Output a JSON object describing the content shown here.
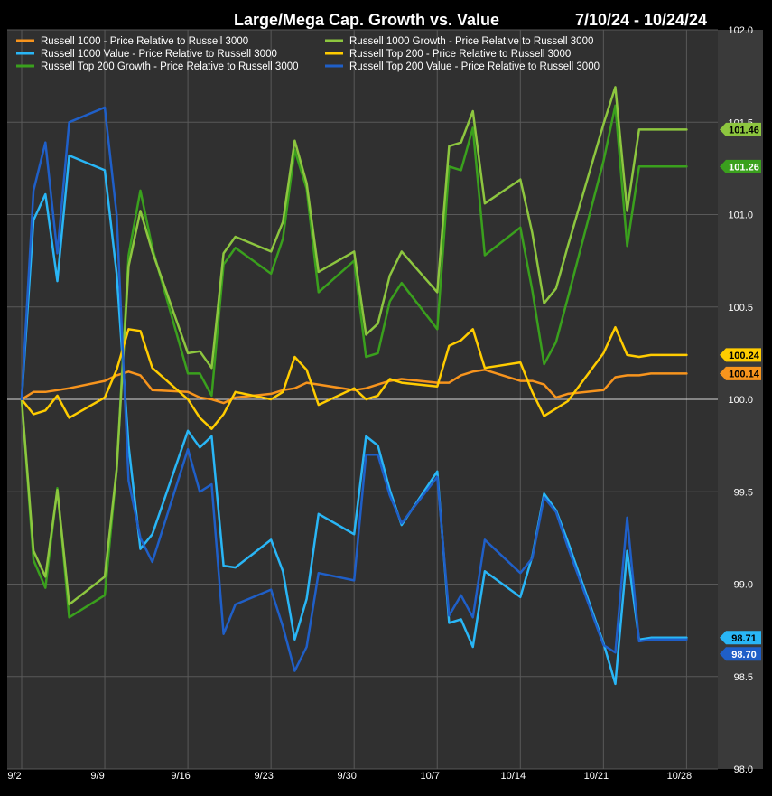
{
  "chart_data": {
    "type": "line",
    "title": "Large/Mega Cap. Growth vs. Value",
    "date_range": "7/10/24 - 10/24/24",
    "xlabel": "",
    "ylabel": "",
    "x_tick_labels": [
      "9/2",
      "9/9",
      "9/16",
      "9/23",
      "9/30",
      "10/7",
      "10/14",
      "10/21",
      "10/28"
    ],
    "y_tick_labels": [
      "102.0",
      "101.5",
      "101.0",
      "100.5",
      "100.0",
      "99.5",
      "99.0",
      "98.5",
      "98.0"
    ],
    "y_ticks": [
      102.0,
      101.5,
      101.0,
      100.5,
      100.0,
      99.5,
      99.0,
      98.5,
      98.0
    ],
    "ylim": [
      98.0,
      102.0
    ],
    "x_start": "2024-09-02",
    "reference_line": 100.0,
    "background": "#303030",
    "grid": true,
    "grid_color": "#595959",
    "legend_position": "top-left",
    "series": [
      {
        "name": "Russell 1000 - Price Relative to Russell 3000",
        "color": "#f7941d",
        "last_value_label": "100.14",
        "values": [
          [
            "2024-09-02",
            100.0
          ],
          [
            "2024-09-03",
            100.04
          ],
          [
            "2024-09-04",
            100.04
          ],
          [
            "2024-09-05",
            100.05
          ],
          [
            "2024-09-06",
            100.06
          ],
          [
            "2024-09-09",
            100.1
          ],
          [
            "2024-09-10",
            100.13
          ],
          [
            "2024-09-11",
            100.15
          ],
          [
            "2024-09-12",
            100.13
          ],
          [
            "2024-09-13",
            100.05
          ],
          [
            "2024-09-16",
            100.04
          ],
          [
            "2024-09-17",
            100.01
          ],
          [
            "2024-09-18",
            100.0
          ],
          [
            "2024-09-19",
            99.98
          ],
          [
            "2024-09-20",
            100.01
          ],
          [
            "2024-09-23",
            100.03
          ],
          [
            "2024-09-24",
            100.05
          ],
          [
            "2024-09-25",
            100.06
          ],
          [
            "2024-09-26",
            100.09
          ],
          [
            "2024-09-27",
            100.08
          ],
          [
            "2024-09-30",
            100.05
          ],
          [
            "2024-10-01",
            100.06
          ],
          [
            "2024-10-02",
            100.08
          ],
          [
            "2024-10-03",
            100.1
          ],
          [
            "2024-10-04",
            100.11
          ],
          [
            "2024-10-07",
            100.09
          ],
          [
            "2024-10-08",
            100.09
          ],
          [
            "2024-10-09",
            100.13
          ],
          [
            "2024-10-10",
            100.15
          ],
          [
            "2024-10-11",
            100.16
          ],
          [
            "2024-10-14",
            100.1
          ],
          [
            "2024-10-15",
            100.1
          ],
          [
            "2024-10-16",
            100.08
          ],
          [
            "2024-10-17",
            100.01
          ],
          [
            "2024-10-18",
            100.03
          ],
          [
            "2024-10-21",
            100.05
          ],
          [
            "2024-10-22",
            100.12
          ],
          [
            "2024-10-23",
            100.13
          ],
          [
            "2024-10-24",
            100.13
          ],
          [
            "2024-10-25",
            100.14
          ],
          [
            "2024-10-28",
            100.14
          ]
        ]
      },
      {
        "name": "Russell 1000 Value - Price Relative to Russell 3000",
        "color": "#29b6f6",
        "last_value_label": "98.71",
        "values": [
          [
            "2024-09-02",
            100.0
          ],
          [
            "2024-09-03",
            100.97
          ],
          [
            "2024-09-04",
            101.11
          ],
          [
            "2024-09-05",
            100.64
          ],
          [
            "2024-09-06",
            101.32
          ],
          [
            "2024-09-09",
            101.24
          ],
          [
            "2024-09-10",
            100.68
          ],
          [
            "2024-09-11",
            99.75
          ],
          [
            "2024-09-12",
            99.19
          ],
          [
            "2024-09-13",
            99.27
          ],
          [
            "2024-09-16",
            99.83
          ],
          [
            "2024-09-17",
            99.74
          ],
          [
            "2024-09-18",
            99.8
          ],
          [
            "2024-09-19",
            99.1
          ],
          [
            "2024-09-20",
            99.09
          ],
          [
            "2024-09-23",
            99.24
          ],
          [
            "2024-09-24",
            99.07
          ],
          [
            "2024-09-25",
            98.7
          ],
          [
            "2024-09-26",
            98.92
          ],
          [
            "2024-09-27",
            99.38
          ],
          [
            "2024-09-30",
            99.27
          ],
          [
            "2024-10-01",
            99.8
          ],
          [
            "2024-10-02",
            99.75
          ],
          [
            "2024-10-03",
            99.51
          ],
          [
            "2024-10-04",
            99.32
          ],
          [
            "2024-10-07",
            99.61
          ],
          [
            "2024-10-08",
            98.79
          ],
          [
            "2024-10-09",
            98.81
          ],
          [
            "2024-10-10",
            98.66
          ],
          [
            "2024-10-11",
            99.07
          ],
          [
            "2024-10-14",
            98.93
          ],
          [
            "2024-10-15",
            99.15
          ],
          [
            "2024-10-16",
            99.49
          ],
          [
            "2024-10-17",
            99.4
          ],
          [
            "2024-10-18",
            99.23
          ],
          [
            "2024-10-21",
            98.68
          ],
          [
            "2024-10-22",
            98.46
          ],
          [
            "2024-10-23",
            99.18
          ],
          [
            "2024-10-24",
            98.7
          ],
          [
            "2024-10-25",
            98.71
          ],
          [
            "2024-10-28",
            98.71
          ]
        ]
      },
      {
        "name": "Russell Top 200 Growth - Price Relative to Russell 3000",
        "color": "#3aa01d",
        "last_value_label": "101.26",
        "values": [
          [
            "2024-09-02",
            100.0
          ],
          [
            "2024-09-03",
            99.13
          ],
          [
            "2024-09-04",
            98.98
          ],
          [
            "2024-09-05",
            99.52
          ],
          [
            "2024-09-06",
            98.82
          ],
          [
            "2024-09-09",
            98.94
          ],
          [
            "2024-09-10",
            99.62
          ],
          [
            "2024-09-11",
            100.78
          ],
          [
            "2024-09-12",
            101.13
          ],
          [
            "2024-09-13",
            100.82
          ],
          [
            "2024-09-16",
            100.14
          ],
          [
            "2024-09-17",
            100.14
          ],
          [
            "2024-09-18",
            100.02
          ],
          [
            "2024-09-19",
            100.73
          ],
          [
            "2024-09-20",
            100.82
          ],
          [
            "2024-09-23",
            100.68
          ],
          [
            "2024-09-24",
            100.87
          ],
          [
            "2024-09-25",
            101.35
          ],
          [
            "2024-09-26",
            101.14
          ],
          [
            "2024-09-27",
            100.58
          ],
          [
            "2024-09-30",
            100.75
          ],
          [
            "2024-10-01",
            100.23
          ],
          [
            "2024-10-02",
            100.25
          ],
          [
            "2024-10-03",
            100.53
          ],
          [
            "2024-10-04",
            100.63
          ],
          [
            "2024-10-07",
            100.38
          ],
          [
            "2024-10-08",
            101.26
          ],
          [
            "2024-10-09",
            101.24
          ],
          [
            "2024-10-10",
            101.47
          ],
          [
            "2024-10-11",
            100.78
          ],
          [
            "2024-10-14",
            100.93
          ],
          [
            "2024-10-15",
            100.59
          ],
          [
            "2024-10-16",
            100.19
          ],
          [
            "2024-10-17",
            100.31
          ],
          [
            "2024-10-18",
            100.55
          ],
          [
            "2024-10-21",
            101.29
          ],
          [
            "2024-10-22",
            101.59
          ],
          [
            "2024-10-23",
            100.83
          ],
          [
            "2024-10-24",
            101.26
          ],
          [
            "2024-10-25",
            101.26
          ],
          [
            "2024-10-28",
            101.26
          ]
        ]
      },
      {
        "name": "Russell 1000 Growth - Price Relative to Russell 3000",
        "color": "#8dc63f",
        "last_value_label": "101.46",
        "values": [
          [
            "2024-09-02",
            100.0
          ],
          [
            "2024-09-03",
            99.18
          ],
          [
            "2024-09-04",
            99.04
          ],
          [
            "2024-09-05",
            99.51
          ],
          [
            "2024-09-06",
            98.89
          ],
          [
            "2024-09-09",
            99.04
          ],
          [
            "2024-09-10",
            99.62
          ],
          [
            "2024-09-11",
            100.72
          ],
          [
            "2024-09-12",
            101.02
          ],
          [
            "2024-09-13",
            100.8
          ],
          [
            "2024-09-16",
            100.25
          ],
          [
            "2024-09-17",
            100.26
          ],
          [
            "2024-09-18",
            100.17
          ],
          [
            "2024-09-19",
            100.79
          ],
          [
            "2024-09-20",
            100.88
          ],
          [
            "2024-09-23",
            100.8
          ],
          [
            "2024-09-24",
            100.96
          ],
          [
            "2024-09-25",
            101.4
          ],
          [
            "2024-09-26",
            101.17
          ],
          [
            "2024-09-27",
            100.69
          ],
          [
            "2024-09-30",
            100.8
          ],
          [
            "2024-10-01",
            100.35
          ],
          [
            "2024-10-02",
            100.41
          ],
          [
            "2024-10-03",
            100.67
          ],
          [
            "2024-10-04",
            100.8
          ],
          [
            "2024-10-07",
            100.58
          ],
          [
            "2024-10-08",
            101.37
          ],
          [
            "2024-10-09",
            101.39
          ],
          [
            "2024-10-10",
            101.56
          ],
          [
            "2024-10-11",
            101.06
          ],
          [
            "2024-10-14",
            101.19
          ],
          [
            "2024-10-15",
            100.9
          ],
          [
            "2024-10-16",
            100.52
          ],
          [
            "2024-10-17",
            100.6
          ],
          [
            "2024-10-18",
            100.83
          ],
          [
            "2024-10-21",
            101.49
          ],
          [
            "2024-10-22",
            101.69
          ],
          [
            "2024-10-23",
            101.02
          ],
          [
            "2024-10-24",
            101.46
          ],
          [
            "2024-10-25",
            101.46
          ],
          [
            "2024-10-28",
            101.46
          ]
        ]
      },
      {
        "name": "Russell Top 200 - Price Relative to Russell 3000",
        "color": "#ffcc00",
        "last_value_label": "100.24",
        "values": [
          [
            "2024-09-02",
            100.0
          ],
          [
            "2024-09-03",
            99.92
          ],
          [
            "2024-09-04",
            99.94
          ],
          [
            "2024-09-05",
            100.02
          ],
          [
            "2024-09-06",
            99.9
          ],
          [
            "2024-09-09",
            100.01
          ],
          [
            "2024-09-10",
            100.16
          ],
          [
            "2024-09-11",
            100.38
          ],
          [
            "2024-09-12",
            100.37
          ],
          [
            "2024-09-13",
            100.17
          ],
          [
            "2024-09-16",
            100.0
          ],
          [
            "2024-09-17",
            99.9
          ],
          [
            "2024-09-18",
            99.84
          ],
          [
            "2024-09-19",
            99.92
          ],
          [
            "2024-09-20",
            100.04
          ],
          [
            "2024-09-23",
            100.0
          ],
          [
            "2024-09-24",
            100.04
          ],
          [
            "2024-09-25",
            100.23
          ],
          [
            "2024-09-26",
            100.16
          ],
          [
            "2024-09-27",
            99.97
          ],
          [
            "2024-09-30",
            100.06
          ],
          [
            "2024-10-01",
            100.0
          ],
          [
            "2024-10-02",
            100.02
          ],
          [
            "2024-10-03",
            100.11
          ],
          [
            "2024-10-04",
            100.09
          ],
          [
            "2024-10-07",
            100.07
          ],
          [
            "2024-10-08",
            100.29
          ],
          [
            "2024-10-09",
            100.32
          ],
          [
            "2024-10-10",
            100.38
          ],
          [
            "2024-10-11",
            100.17
          ],
          [
            "2024-10-14",
            100.2
          ],
          [
            "2024-10-15",
            100.04
          ],
          [
            "2024-10-16",
            99.91
          ],
          [
            "2024-10-17",
            99.95
          ],
          [
            "2024-10-18",
            99.99
          ],
          [
            "2024-10-21",
            100.25
          ],
          [
            "2024-10-22",
            100.39
          ],
          [
            "2024-10-23",
            100.24
          ],
          [
            "2024-10-24",
            100.23
          ],
          [
            "2024-10-25",
            100.24
          ],
          [
            "2024-10-28",
            100.24
          ]
        ]
      },
      {
        "name": "Russell Top 200 Value - Price Relative to Russell 3000",
        "color": "#1f5fc8",
        "last_value_label": "98.70",
        "values": [
          [
            "2024-09-02",
            100.0
          ],
          [
            "2024-09-03",
            101.13
          ],
          [
            "2024-09-04",
            101.39
          ],
          [
            "2024-09-05",
            100.79
          ],
          [
            "2024-09-06",
            101.5
          ],
          [
            "2024-09-09",
            101.58
          ],
          [
            "2024-09-10",
            101.0
          ],
          [
            "2024-09-11",
            99.56
          ],
          [
            "2024-09-12",
            99.25
          ],
          [
            "2024-09-13",
            99.12
          ],
          [
            "2024-09-16",
            99.73
          ],
          [
            "2024-09-17",
            99.5
          ],
          [
            "2024-09-18",
            99.54
          ],
          [
            "2024-09-19",
            98.73
          ],
          [
            "2024-09-20",
            98.89
          ],
          [
            "2024-09-23",
            98.97
          ],
          [
            "2024-09-24",
            98.77
          ],
          [
            "2024-09-25",
            98.53
          ],
          [
            "2024-09-26",
            98.66
          ],
          [
            "2024-09-27",
            99.06
          ],
          [
            "2024-09-30",
            99.02
          ],
          [
            "2024-10-01",
            99.7
          ],
          [
            "2024-10-02",
            99.7
          ],
          [
            "2024-10-03",
            99.48
          ],
          [
            "2024-10-04",
            99.33
          ],
          [
            "2024-10-07",
            99.58
          ],
          [
            "2024-10-08",
            98.83
          ],
          [
            "2024-10-09",
            98.94
          ],
          [
            "2024-10-10",
            98.82
          ],
          [
            "2024-10-11",
            99.24
          ],
          [
            "2024-10-14",
            99.06
          ],
          [
            "2024-10-15",
            99.14
          ],
          [
            "2024-10-16",
            99.47
          ],
          [
            "2024-10-17",
            99.39
          ],
          [
            "2024-10-18",
            99.2
          ],
          [
            "2024-10-21",
            98.67
          ],
          [
            "2024-10-22",
            98.63
          ],
          [
            "2024-10-23",
            99.36
          ],
          [
            "2024-10-24",
            98.69
          ],
          [
            "2024-10-25",
            98.7
          ],
          [
            "2024-10-28",
            98.7
          ]
        ]
      }
    ],
    "legend_order": [
      0,
      3,
      1,
      4,
      2,
      5
    ]
  }
}
